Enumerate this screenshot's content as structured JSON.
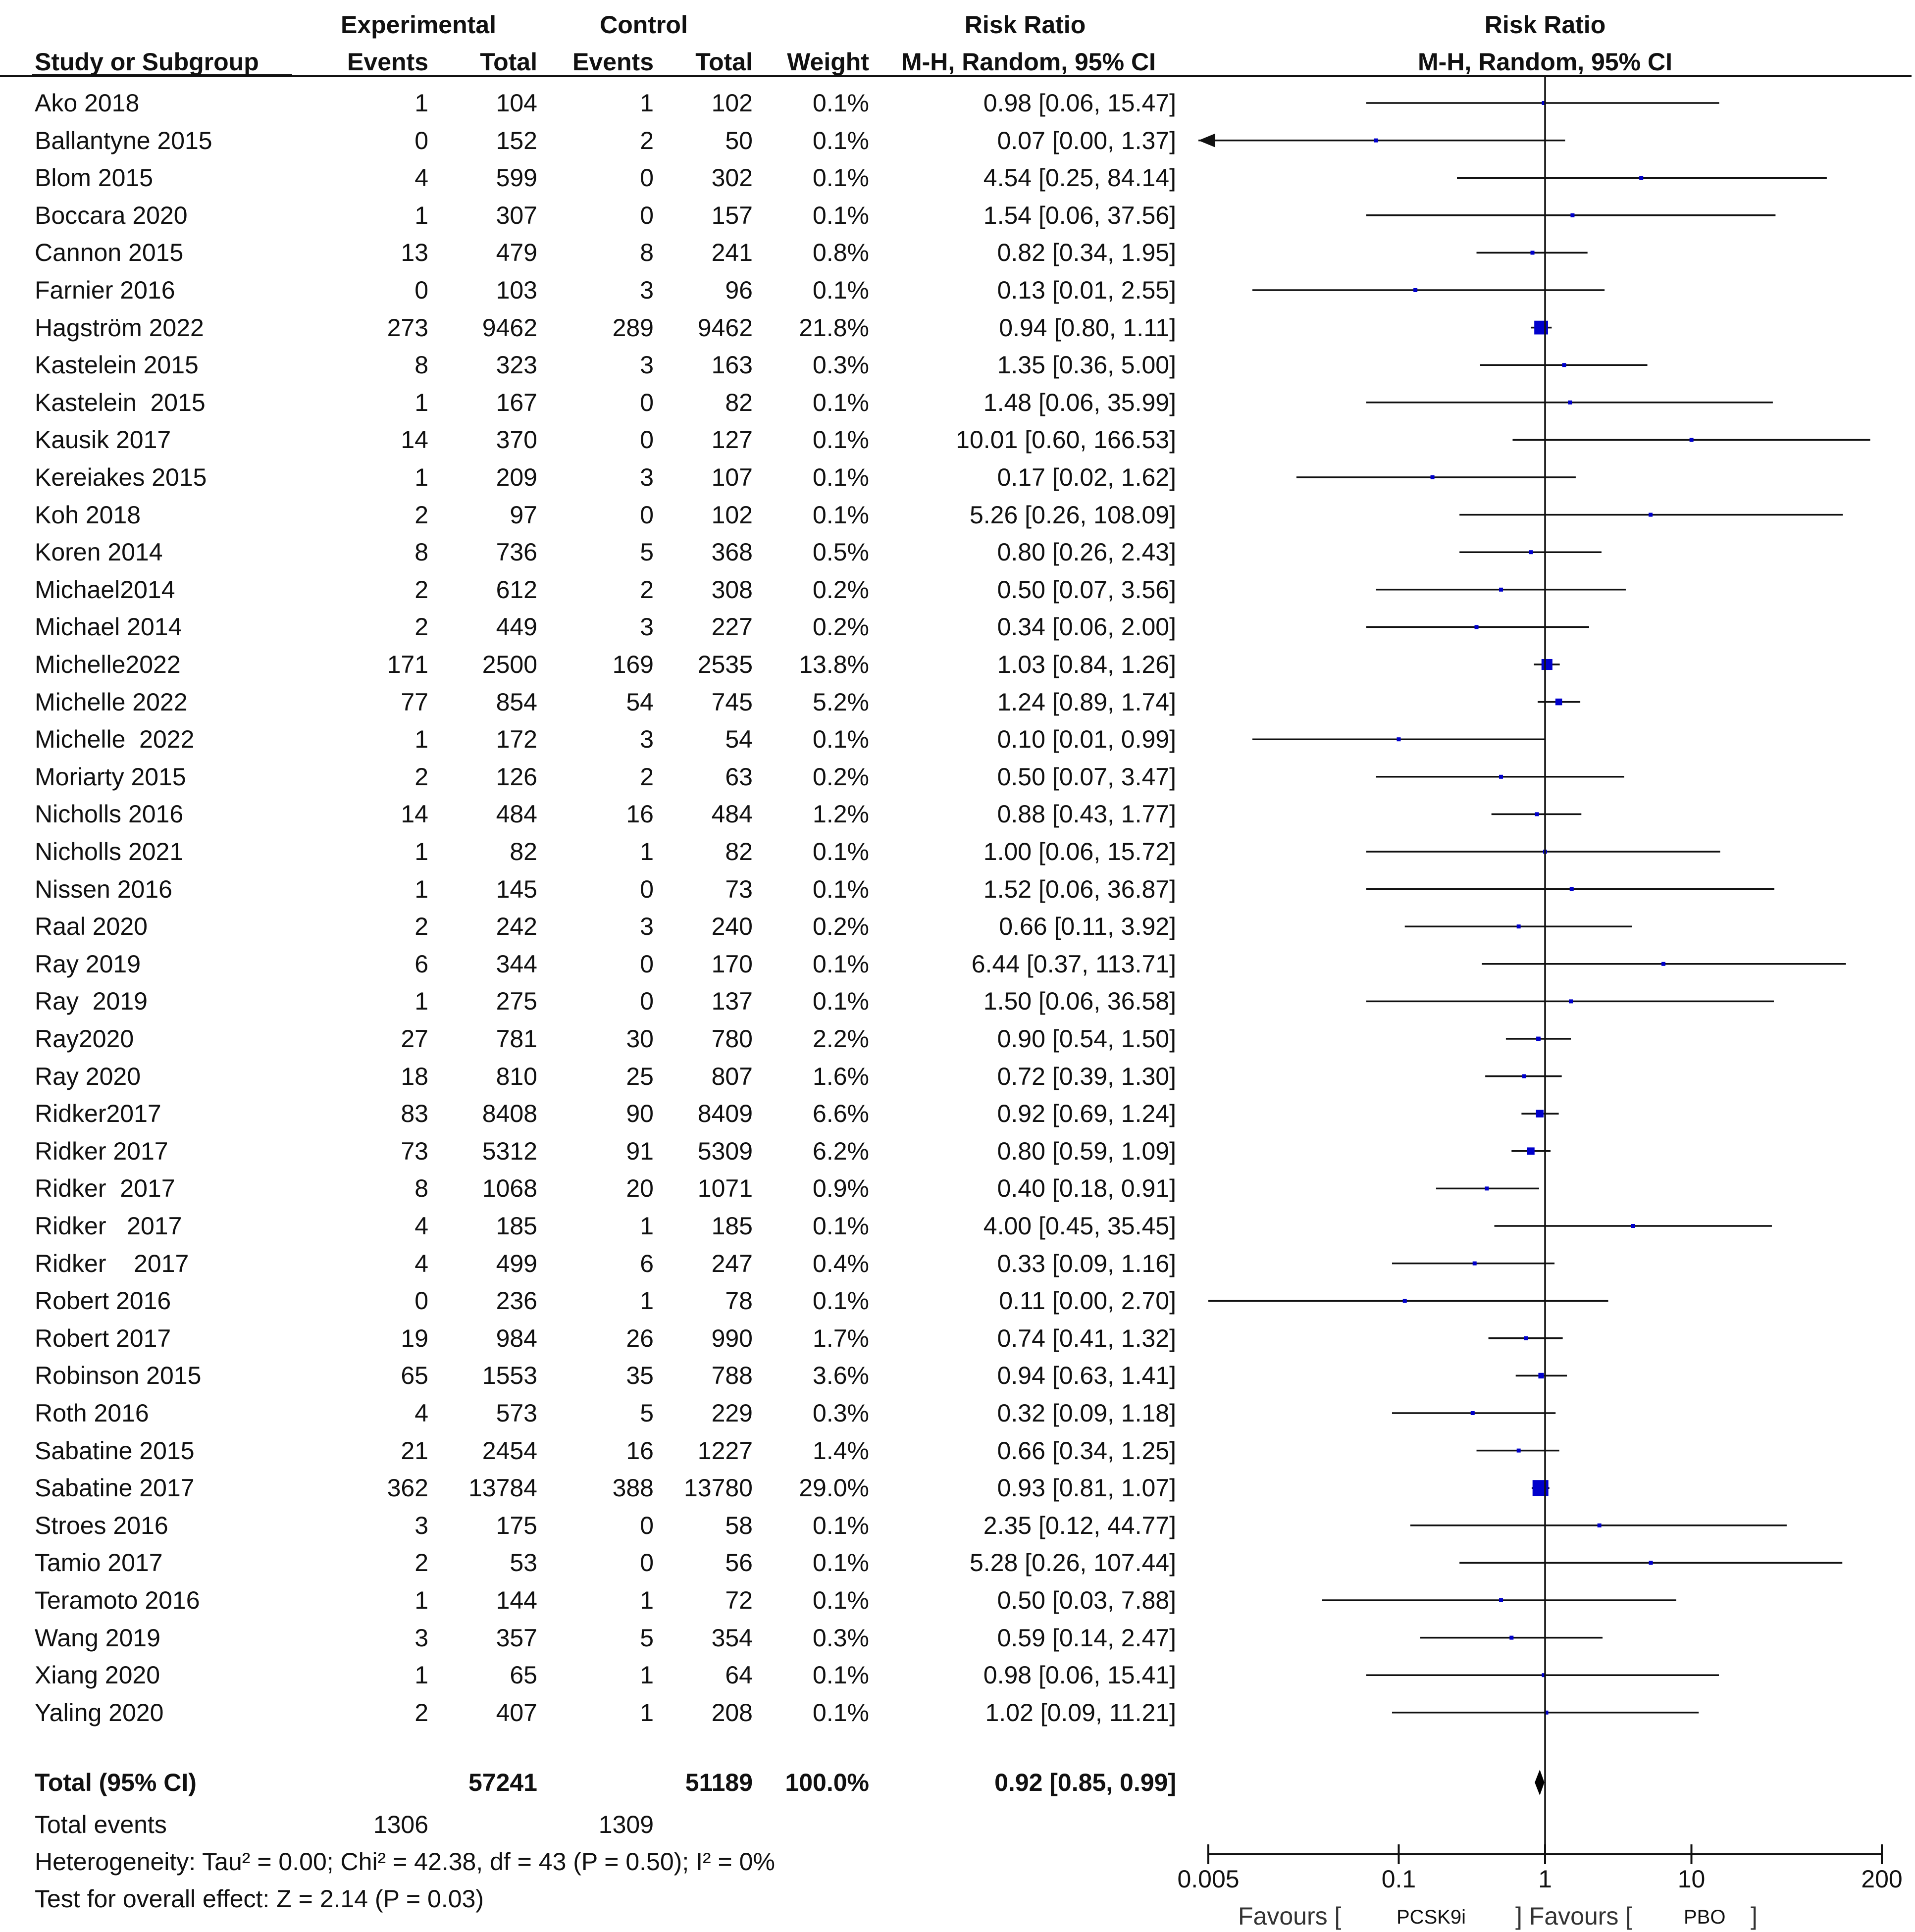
{
  "header": {
    "group_experimental": "Experimental",
    "group_control": "Control",
    "effect_title": "Risk Ratio",
    "plot_title": "Risk Ratio",
    "col_study": "Study or Subgroup",
    "col_exp_events": "Events",
    "col_exp_total": "Total",
    "col_ctrl_events": "Events",
    "col_ctrl_total": "Total",
    "col_weight": "Weight",
    "col_ci": "M-H, Random, 95% CI",
    "plot_method": "M-H, Random, 95% CI"
  },
  "total": {
    "label": "Total (95% CI)",
    "exp_total": "57241",
    "ctrl_total": "51189",
    "weight": "100.0%",
    "ci": "0.92 [0.85, 0.99]",
    "events_label": "Total events",
    "exp_events": "1306",
    "ctrl_events": "1309",
    "heterogeneity": "Heterogeneity: Tau² = 0.00; Chi² = 42.38, df = 43 (P = 0.50); I² = 0%",
    "overall": "Test for overall effect: Z = 2.14 (P = 0.03)"
  },
  "axis": {
    "tick_labels": [
      "0.005",
      "0.1",
      "1",
      "10",
      "200"
    ],
    "favours_left_prefix": "Favours [",
    "favours_left_group": "PCSK9i",
    "favours_right_prefix": "] Favours [",
    "favours_right_group": "PBO",
    "favours_right_suffix": "]"
  },
  "chart_data": {
    "type": "forest",
    "title": "Risk Ratio",
    "method": "M-H, Random, 95% CI",
    "scale": "log",
    "xlim": [
      0.005,
      200
    ],
    "xticks": [
      0.005,
      0.1,
      1,
      10,
      200
    ],
    "xlabel_left": "Favours [PCSK9i]",
    "xlabel_right": "Favours [PBO]",
    "marker_color": "#0000cc",
    "studies": [
      {
        "name": "Ako 2018",
        "exp_events": 1,
        "exp_total": 104,
        "ctrl_events": 1,
        "ctrl_total": 102,
        "weight": "0.1%",
        "ci_text": "0.98 [0.06, 15.47]",
        "rr": 0.98,
        "lo": 0.06,
        "hi": 15.47
      },
      {
        "name": "Ballantyne 2015",
        "exp_events": 0,
        "exp_total": 152,
        "ctrl_events": 2,
        "ctrl_total": 50,
        "weight": "0.1%",
        "ci_text": "0.07 [0.00, 1.37]",
        "rr": 0.07,
        "lo": 0.001,
        "hi": 1.37
      },
      {
        "name": "Blom 2015",
        "exp_events": 4,
        "exp_total": 599,
        "ctrl_events": 0,
        "ctrl_total": 302,
        "weight": "0.1%",
        "ci_text": "4.54 [0.25, 84.14]",
        "rr": 4.54,
        "lo": 0.25,
        "hi": 84.14
      },
      {
        "name": "Boccara 2020",
        "exp_events": 1,
        "exp_total": 307,
        "ctrl_events": 0,
        "ctrl_total": 157,
        "weight": "0.1%",
        "ci_text": "1.54 [0.06, 37.56]",
        "rr": 1.54,
        "lo": 0.06,
        "hi": 37.56
      },
      {
        "name": "Cannon 2015",
        "exp_events": 13,
        "exp_total": 479,
        "ctrl_events": 8,
        "ctrl_total": 241,
        "weight": "0.8%",
        "ci_text": "0.82 [0.34, 1.95]",
        "rr": 0.82,
        "lo": 0.34,
        "hi": 1.95
      },
      {
        "name": "Farnier 2016",
        "exp_events": 0,
        "exp_total": 103,
        "ctrl_events": 3,
        "ctrl_total": 96,
        "weight": "0.1%",
        "ci_text": "0.13 [0.01, 2.55]",
        "rr": 0.13,
        "lo": 0.01,
        "hi": 2.55
      },
      {
        "name": "Hagström 2022",
        "exp_events": 273,
        "exp_total": 9462,
        "ctrl_events": 289,
        "ctrl_total": 9462,
        "weight": "21.8%",
        "ci_text": "0.94 [0.80, 1.11]",
        "rr": 0.94,
        "lo": 0.8,
        "hi": 1.11
      },
      {
        "name": "Kastelein 2015",
        "exp_events": 8,
        "exp_total": 323,
        "ctrl_events": 3,
        "ctrl_total": 163,
        "weight": "0.3%",
        "ci_text": "1.35 [0.36, 5.00]",
        "rr": 1.35,
        "lo": 0.36,
        "hi": 5.0
      },
      {
        "name": "Kastelein  2015",
        "exp_events": 1,
        "exp_total": 167,
        "ctrl_events": 0,
        "ctrl_total": 82,
        "weight": "0.1%",
        "ci_text": "1.48 [0.06, 35.99]",
        "rr": 1.48,
        "lo": 0.06,
        "hi": 35.99
      },
      {
        "name": "Kausik 2017",
        "exp_events": 14,
        "exp_total": 370,
        "ctrl_events": 0,
        "ctrl_total": 127,
        "weight": "0.1%",
        "ci_text": "10.01 [0.60, 166.53]",
        "rr": 10.01,
        "lo": 0.6,
        "hi": 166.53
      },
      {
        "name": "Kereiakes 2015",
        "exp_events": 1,
        "exp_total": 209,
        "ctrl_events": 3,
        "ctrl_total": 107,
        "weight": "0.1%",
        "ci_text": "0.17 [0.02, 1.62]",
        "rr": 0.17,
        "lo": 0.02,
        "hi": 1.62
      },
      {
        "name": "Koh 2018",
        "exp_events": 2,
        "exp_total": 97,
        "ctrl_events": 0,
        "ctrl_total": 102,
        "weight": "0.1%",
        "ci_text": "5.26 [0.26, 108.09]",
        "rr": 5.26,
        "lo": 0.26,
        "hi": 108.09
      },
      {
        "name": "Koren 2014",
        "exp_events": 8,
        "exp_total": 736,
        "ctrl_events": 5,
        "ctrl_total": 368,
        "weight": "0.5%",
        "ci_text": "0.80 [0.26, 2.43]",
        "rr": 0.8,
        "lo": 0.26,
        "hi": 2.43
      },
      {
        "name": "Michael2014",
        "exp_events": 2,
        "exp_total": 612,
        "ctrl_events": 2,
        "ctrl_total": 308,
        "weight": "0.2%",
        "ci_text": "0.50 [0.07, 3.56]",
        "rr": 0.5,
        "lo": 0.07,
        "hi": 3.56
      },
      {
        "name": "Michael 2014",
        "exp_events": 2,
        "exp_total": 449,
        "ctrl_events": 3,
        "ctrl_total": 227,
        "weight": "0.2%",
        "ci_text": "0.34 [0.06, 2.00]",
        "rr": 0.34,
        "lo": 0.06,
        "hi": 2.0
      },
      {
        "name": "Michelle2022",
        "exp_events": 171,
        "exp_total": 2500,
        "ctrl_events": 169,
        "ctrl_total": 2535,
        "weight": "13.8%",
        "ci_text": "1.03 [0.84, 1.26]",
        "rr": 1.03,
        "lo": 0.84,
        "hi": 1.26
      },
      {
        "name": "Michelle 2022",
        "exp_events": 77,
        "exp_total": 854,
        "ctrl_events": 54,
        "ctrl_total": 745,
        "weight": "5.2%",
        "ci_text": "1.24 [0.89, 1.74]",
        "rr": 1.24,
        "lo": 0.89,
        "hi": 1.74
      },
      {
        "name": "Michelle  2022",
        "exp_events": 1,
        "exp_total": 172,
        "ctrl_events": 3,
        "ctrl_total": 54,
        "weight": "0.1%",
        "ci_text": "0.10 [0.01, 0.99]",
        "rr": 0.1,
        "lo": 0.01,
        "hi": 0.99
      },
      {
        "name": "Moriarty 2015",
        "exp_events": 2,
        "exp_total": 126,
        "ctrl_events": 2,
        "ctrl_total": 63,
        "weight": "0.2%",
        "ci_text": "0.50 [0.07, 3.47]",
        "rr": 0.5,
        "lo": 0.07,
        "hi": 3.47
      },
      {
        "name": "Nicholls 2016",
        "exp_events": 14,
        "exp_total": 484,
        "ctrl_events": 16,
        "ctrl_total": 484,
        "weight": "1.2%",
        "ci_text": "0.88 [0.43, 1.77]",
        "rr": 0.88,
        "lo": 0.43,
        "hi": 1.77
      },
      {
        "name": "Nicholls 2021",
        "exp_events": 1,
        "exp_total": 82,
        "ctrl_events": 1,
        "ctrl_total": 82,
        "weight": "0.1%",
        "ci_text": "1.00 [0.06, 15.72]",
        "rr": 1.0,
        "lo": 0.06,
        "hi": 15.72
      },
      {
        "name": "Nissen 2016",
        "exp_events": 1,
        "exp_total": 145,
        "ctrl_events": 0,
        "ctrl_total": 73,
        "weight": "0.1%",
        "ci_text": "1.52 [0.06, 36.87]",
        "rr": 1.52,
        "lo": 0.06,
        "hi": 36.87
      },
      {
        "name": "Raal 2020",
        "exp_events": 2,
        "exp_total": 242,
        "ctrl_events": 3,
        "ctrl_total": 240,
        "weight": "0.2%",
        "ci_text": "0.66 [0.11, 3.92]",
        "rr": 0.66,
        "lo": 0.11,
        "hi": 3.92
      },
      {
        "name": "Ray 2019",
        "exp_events": 6,
        "exp_total": 344,
        "ctrl_events": 0,
        "ctrl_total": 170,
        "weight": "0.1%",
        "ci_text": "6.44 [0.37, 113.71]",
        "rr": 6.44,
        "lo": 0.37,
        "hi": 113.71
      },
      {
        "name": "Ray  2019",
        "exp_events": 1,
        "exp_total": 275,
        "ctrl_events": 0,
        "ctrl_total": 137,
        "weight": "0.1%",
        "ci_text": "1.50 [0.06, 36.58]",
        "rr": 1.5,
        "lo": 0.06,
        "hi": 36.58
      },
      {
        "name": "Ray2020",
        "exp_events": 27,
        "exp_total": 781,
        "ctrl_events": 30,
        "ctrl_total": 780,
        "weight": "2.2%",
        "ci_text": "0.90 [0.54, 1.50]",
        "rr": 0.9,
        "lo": 0.54,
        "hi": 1.5
      },
      {
        "name": "Ray 2020",
        "exp_events": 18,
        "exp_total": 810,
        "ctrl_events": 25,
        "ctrl_total": 807,
        "weight": "1.6%",
        "ci_text": "0.72 [0.39, 1.30]",
        "rr": 0.72,
        "lo": 0.39,
        "hi": 1.3
      },
      {
        "name": "Ridker2017",
        "exp_events": 83,
        "exp_total": 8408,
        "ctrl_events": 90,
        "ctrl_total": 8409,
        "weight": "6.6%",
        "ci_text": "0.92 [0.69, 1.24]",
        "rr": 0.92,
        "lo": 0.69,
        "hi": 1.24
      },
      {
        "name": "Ridker 2017",
        "exp_events": 73,
        "exp_total": 5312,
        "ctrl_events": 91,
        "ctrl_total": 5309,
        "weight": "6.2%",
        "ci_text": "0.80 [0.59, 1.09]",
        "rr": 0.8,
        "lo": 0.59,
        "hi": 1.09
      },
      {
        "name": "Ridker  2017",
        "exp_events": 8,
        "exp_total": 1068,
        "ctrl_events": 20,
        "ctrl_total": 1071,
        "weight": "0.9%",
        "ci_text": "0.40 [0.18, 0.91]",
        "rr": 0.4,
        "lo": 0.18,
        "hi": 0.91
      },
      {
        "name": "Ridker   2017",
        "exp_events": 4,
        "exp_total": 185,
        "ctrl_events": 1,
        "ctrl_total": 185,
        "weight": "0.1%",
        "ci_text": "4.00 [0.45, 35.45]",
        "rr": 4.0,
        "lo": 0.45,
        "hi": 35.45
      },
      {
        "name": "Ridker    2017",
        "exp_events": 4,
        "exp_total": 499,
        "ctrl_events": 6,
        "ctrl_total": 247,
        "weight": "0.4%",
        "ci_text": "0.33 [0.09, 1.16]",
        "rr": 0.33,
        "lo": 0.09,
        "hi": 1.16
      },
      {
        "name": "Robert 2016",
        "exp_events": 0,
        "exp_total": 236,
        "ctrl_events": 1,
        "ctrl_total": 78,
        "weight": "0.1%",
        "ci_text": "0.11 [0.00, 2.70]",
        "rr": 0.11,
        "lo": 0.005,
        "hi": 2.7
      },
      {
        "name": "Robert 2017",
        "exp_events": 19,
        "exp_total": 984,
        "ctrl_events": 26,
        "ctrl_total": 990,
        "weight": "1.7%",
        "ci_text": "0.74 [0.41, 1.32]",
        "rr": 0.74,
        "lo": 0.41,
        "hi": 1.32
      },
      {
        "name": "Robinson 2015",
        "exp_events": 65,
        "exp_total": 1553,
        "ctrl_events": 35,
        "ctrl_total": 788,
        "weight": "3.6%",
        "ci_text": "0.94 [0.63, 1.41]",
        "rr": 0.94,
        "lo": 0.63,
        "hi": 1.41
      },
      {
        "name": "Roth 2016",
        "exp_events": 4,
        "exp_total": 573,
        "ctrl_events": 5,
        "ctrl_total": 229,
        "weight": "0.3%",
        "ci_text": "0.32 [0.09, 1.18]",
        "rr": 0.32,
        "lo": 0.09,
        "hi": 1.18
      },
      {
        "name": "Sabatine 2015",
        "exp_events": 21,
        "exp_total": 2454,
        "ctrl_events": 16,
        "ctrl_total": 1227,
        "weight": "1.4%",
        "ci_text": "0.66 [0.34, 1.25]",
        "rr": 0.66,
        "lo": 0.34,
        "hi": 1.25
      },
      {
        "name": "Sabatine 2017",
        "exp_events": 362,
        "exp_total": 13784,
        "ctrl_events": 388,
        "ctrl_total": 13780,
        "weight": "29.0%",
        "ci_text": "0.93 [0.81, 1.07]",
        "rr": 0.93,
        "lo": 0.81,
        "hi": 1.07
      },
      {
        "name": "Stroes 2016",
        "exp_events": 3,
        "exp_total": 175,
        "ctrl_events": 0,
        "ctrl_total": 58,
        "weight": "0.1%",
        "ci_text": "2.35 [0.12, 44.77]",
        "rr": 2.35,
        "lo": 0.12,
        "hi": 44.77
      },
      {
        "name": "Tamio 2017",
        "exp_events": 2,
        "exp_total": 53,
        "ctrl_events": 0,
        "ctrl_total": 56,
        "weight": "0.1%",
        "ci_text": "5.28 [0.26, 107.44]",
        "rr": 5.28,
        "lo": 0.26,
        "hi": 107.44
      },
      {
        "name": "Teramoto 2016",
        "exp_events": 1,
        "exp_total": 144,
        "ctrl_events": 1,
        "ctrl_total": 72,
        "weight": "0.1%",
        "ci_text": "0.50 [0.03, 7.88]",
        "rr": 0.5,
        "lo": 0.03,
        "hi": 7.88
      },
      {
        "name": "Wang 2019",
        "exp_events": 3,
        "exp_total": 357,
        "ctrl_events": 5,
        "ctrl_total": 354,
        "weight": "0.3%",
        "ci_text": "0.59 [0.14, 2.47]",
        "rr": 0.59,
        "lo": 0.14,
        "hi": 2.47
      },
      {
        "name": "Xiang 2020",
        "exp_events": 1,
        "exp_total": 65,
        "ctrl_events": 1,
        "ctrl_total": 64,
        "weight": "0.1%",
        "ci_text": "0.98 [0.06, 15.41]",
        "rr": 0.98,
        "lo": 0.06,
        "hi": 15.41
      },
      {
        "name": "Yaling 2020",
        "exp_events": 2,
        "exp_total": 407,
        "ctrl_events": 1,
        "ctrl_total": 208,
        "weight": "0.1%",
        "ci_text": "1.02 [0.09, 11.21]",
        "rr": 1.02,
        "lo": 0.09,
        "hi": 11.21
      }
    ],
    "pooled": {
      "rr": 0.92,
      "lo": 0.85,
      "hi": 0.99
    }
  }
}
